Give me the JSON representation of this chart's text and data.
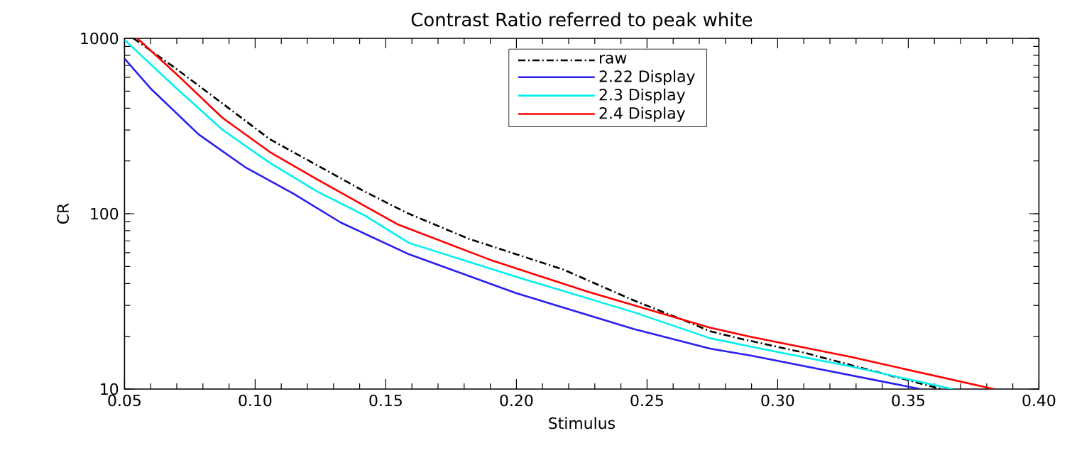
{
  "chart_data": {
    "type": "line",
    "title": "Contrast Ratio referred to peak white",
    "xlabel": "Stimulus",
    "ylabel": "CR",
    "log": "y",
    "xlim": [
      0.05,
      0.4
    ],
    "ylim": [
      10,
      1000
    ],
    "xticks": [
      {
        "value": 0.05,
        "label": "0.05"
      },
      {
        "value": 0.1,
        "label": "0.10"
      },
      {
        "value": 0.15,
        "label": "0.15"
      },
      {
        "value": 0.2,
        "label": "0.20"
      },
      {
        "value": 0.25,
        "label": "0.25"
      },
      {
        "value": 0.3,
        "label": "0.30"
      },
      {
        "value": 0.35,
        "label": "0.35"
      },
      {
        "value": 0.4,
        "label": "0.40"
      }
    ],
    "yticks": [
      10,
      100,
      1000
    ],
    "grid": false,
    "legend": "top",
    "marker": "none",
    "series": [
      {
        "name": "raw",
        "color": "#000000",
        "line_style": "dashdot",
        "x": [
          0.0534,
          0.0694,
          0.0875,
          0.1056,
          0.1237,
          0.1418,
          0.1581,
          0.1817,
          0.218,
          0.245,
          0.2632,
          0.2741,
          0.2849,
          0.3103,
          0.3627
        ],
        "values": [
          1000,
          677,
          425,
          266,
          189,
          134,
          101,
          72,
          48,
          32,
          25,
          21.4,
          19.5,
          16.1,
          10
        ]
      },
      {
        "name": "2.22 Display",
        "color": "#2a1ef0",
        "line_style": "solid",
        "x": [
          0.05,
          0.0603,
          0.0784,
          0.0965,
          0.1147,
          0.1328,
          0.159,
          0.2,
          0.245,
          0.2741,
          0.29,
          0.3547
        ],
        "values": [
          766,
          512,
          283,
          183,
          130,
          89,
          58.6,
          35.2,
          22,
          17,
          15.5,
          10
        ]
      },
      {
        "name": "2.3 Display",
        "color": "#00f0f0",
        "line_style": "solid",
        "x": [
          0.05,
          0.0694,
          0.0875,
          0.1056,
          0.1237,
          0.1418,
          0.159,
          0.1998,
          0.245,
          0.2741,
          0.2894,
          0.3284,
          0.367
        ],
        "values": [
          980,
          527,
          301,
          195,
          134,
          98,
          68,
          43.7,
          27.4,
          19.5,
          17.5,
          13.4,
          10
        ]
      },
      {
        "name": "2.4 Display",
        "color": "#ff0000",
        "line_style": "solid",
        "x": [
          0.0549,
          0.0694,
          0.0875,
          0.1056,
          0.1237,
          0.1418,
          0.1545,
          0.1908,
          0.227,
          0.2632,
          0.2741,
          0.2894,
          0.3284,
          0.3828
        ],
        "values": [
          1000,
          635,
          352,
          225,
          157,
          111,
          87,
          54,
          36,
          25,
          22.4,
          19.9,
          15.2,
          10
        ]
      }
    ]
  }
}
